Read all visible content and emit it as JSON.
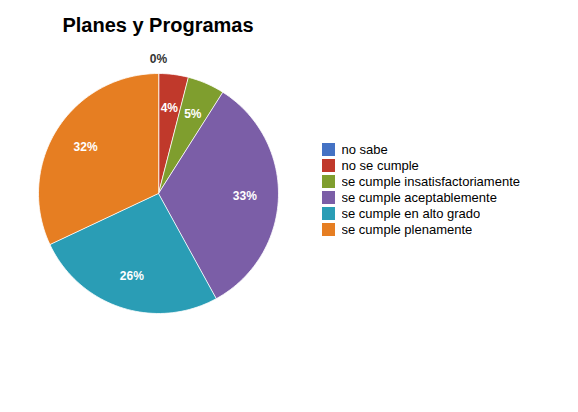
{
  "chart_data": {
    "type": "pie",
    "title": "Planes y Programas",
    "categories": [
      "no sabe",
      "no se cumple",
      "se cumple insatisfactoriamente",
      "se cumple aceptablemente",
      "se cumple en alto grado",
      "se cumple plenamente"
    ],
    "values": [
      0,
      4,
      5,
      33,
      26,
      32
    ],
    "value_labels": [
      "0%",
      "4%",
      "5%",
      "33%",
      "26%",
      "32%"
    ],
    "colors": [
      "#4472C4",
      "#C0392B",
      "#7F9E2E",
      "#7B5EA7",
      "#2A9DB5",
      "#E67E22"
    ],
    "legend": "right",
    "data_labels": true
  }
}
